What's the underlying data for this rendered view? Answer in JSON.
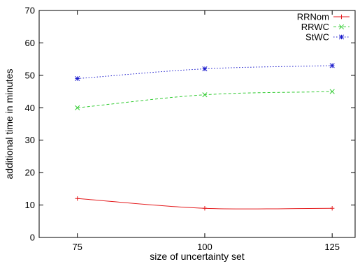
{
  "chart_data": {
    "type": "line",
    "xlabel": "size of uncertainty set",
    "ylabel": "additional time in minutes",
    "x": [
      75,
      100,
      125
    ],
    "xticks": [
      75,
      100,
      125
    ],
    "yticks": [
      0,
      10,
      20,
      30,
      40,
      50,
      60,
      70
    ],
    "ylim": [
      0,
      70
    ],
    "xlim": [
      67.5,
      129.5
    ],
    "grid": false,
    "legend_position": "top-right",
    "series": [
      {
        "name": "RRNom",
        "values": [
          12,
          9,
          9
        ],
        "color": "#e41a1c",
        "marker": "plus",
        "dash": "solid"
      },
      {
        "name": "RRWC",
        "values": [
          40,
          44,
          45
        ],
        "color": "#33cc33",
        "marker": "cross",
        "dash": "dashed"
      },
      {
        "name": "StWC",
        "values": [
          49,
          52,
          53
        ],
        "color": "#1a1acc",
        "marker": "star",
        "dash": "dotted"
      }
    ]
  }
}
